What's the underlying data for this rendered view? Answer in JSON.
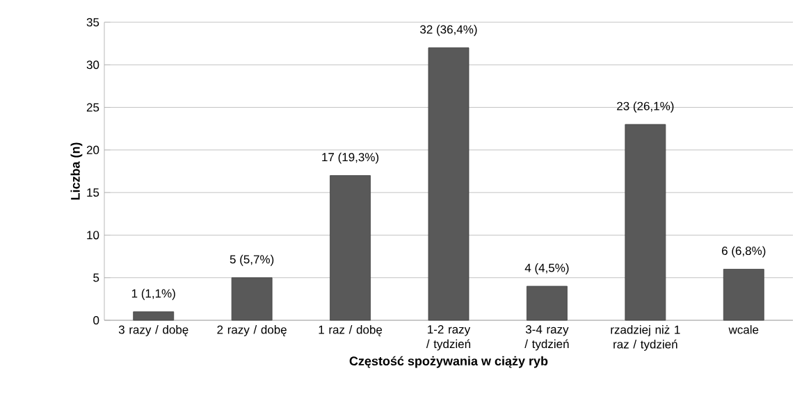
{
  "chart_data": {
    "type": "bar",
    "xlabel": "Częstość spożywania  w ciąży ryb",
    "ylabel": "Liczba (n)",
    "categories": [
      "3 razy / dobę",
      "2 razy / dobę",
      "1 raz / dobę",
      "1-2 razy / tydzień",
      "3-4 razy / tydzień",
      "rzadziej niż 1 raz / tydzień",
      "wcale"
    ],
    "values": [
      1,
      5,
      17,
      32,
      4,
      23,
      6
    ],
    "value_labels": [
      "1 (1,1%)",
      "5 (5,7%)",
      "17 (19,3%)",
      "32 (36,4%)",
      "4 (4,5%)",
      "23 (26,1%)",
      "6 (6,8%)"
    ],
    "color": "#595959",
    "ylim": [
      0,
      35
    ],
    "yticks": [
      0,
      5,
      10,
      15,
      20,
      25,
      30,
      35
    ],
    "grid": "y"
  }
}
